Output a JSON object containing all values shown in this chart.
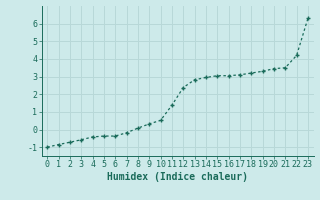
{
  "x": [
    0,
    1,
    2,
    3,
    4,
    5,
    6,
    7,
    8,
    9,
    10,
    11,
    12,
    13,
    14,
    15,
    16,
    17,
    18,
    19,
    20,
    21,
    22,
    23
  ],
  "y": [
    -1.0,
    -0.85,
    -0.72,
    -0.58,
    -0.42,
    -0.37,
    -0.37,
    -0.18,
    0.08,
    0.32,
    0.52,
    1.38,
    2.38,
    2.82,
    2.95,
    3.05,
    3.05,
    3.1,
    3.2,
    3.3,
    3.45,
    3.5,
    4.2,
    6.3
  ],
  "line_color": "#1a6b5a",
  "marker": "+",
  "marker_color": "#1a6b5a",
  "bg_color": "#cdeaea",
  "grid_color": "#b8d8d8",
  "tick_color": "#1a6b5a",
  "label_color": "#1a6b5a",
  "xlabel": "Humidex (Indice chaleur)",
  "xlim": [
    -0.5,
    23.5
  ],
  "ylim": [
    -1.5,
    7.0
  ],
  "yticks": [
    -1,
    0,
    1,
    2,
    3,
    4,
    5,
    6
  ],
  "xticks": [
    0,
    1,
    2,
    3,
    4,
    5,
    6,
    7,
    8,
    9,
    10,
    11,
    12,
    13,
    14,
    15,
    16,
    17,
    18,
    19,
    20,
    21,
    22,
    23
  ],
  "xlabel_fontsize": 7.0,
  "tick_fontsize": 6.0,
  "linewidth": 0.9,
  "markersize": 3.5
}
